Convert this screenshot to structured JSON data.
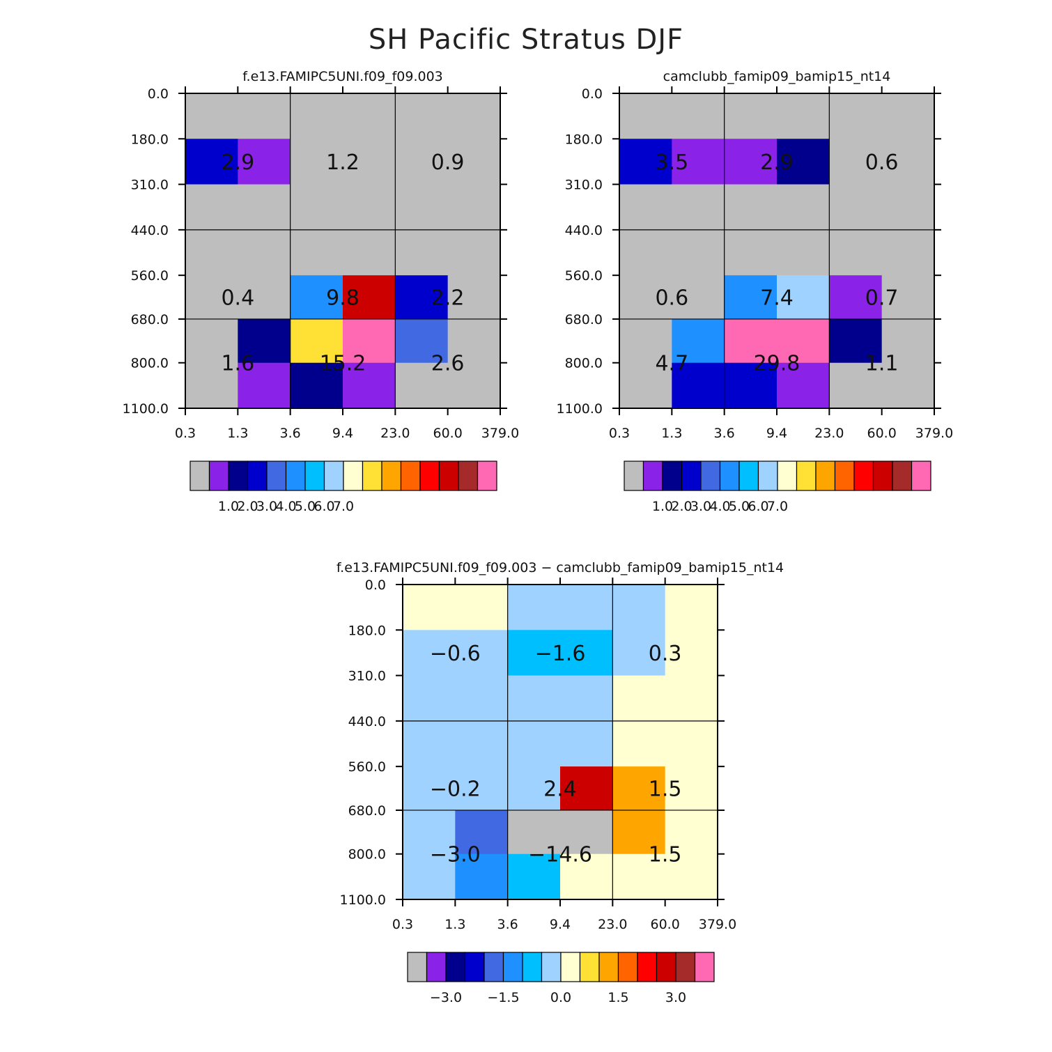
{
  "figure_title": "SH Pacific Stratus DJF",
  "palette": [
    "#bebebe",
    "#8a22e8",
    "#00008c",
    "#0000cd",
    "#4169e1",
    "#1e90ff",
    "#00bfff",
    "#a0d2ff",
    "#ffffd1",
    "#ffe135",
    "#ffa500",
    "#ff6400",
    "#ff0000",
    "#cd0000",
    "#a52a2a",
    "#ff69b4"
  ],
  "chart_data": [
    {
      "type": "heatmap",
      "title": "f.e13.FAMIPC5UNI.f09_f09.003",
      "xticks": [
        "0.3",
        "1.3",
        "3.6",
        "9.4",
        "23.0",
        "60.0",
        "379.0"
      ],
      "yticks": [
        "0.0",
        "180.0",
        "310.0",
        "440.0",
        "560.0",
        "680.0",
        "800.0",
        "1100.0"
      ],
      "cells": [
        [
          0,
          0,
          0,
          0,
          0,
          0
        ],
        [
          3,
          1,
          0,
          0,
          0,
          0
        ],
        [
          0,
          0,
          0,
          0,
          0,
          0
        ],
        [
          0,
          0,
          0,
          0,
          0,
          0
        ],
        [
          0,
          0,
          5,
          13,
          3,
          0
        ],
        [
          0,
          2,
          9,
          15,
          4,
          0
        ],
        [
          0,
          1,
          2,
          1,
          0,
          0
        ]
      ],
      "annotations": [
        [
          "2.9",
          "1.2",
          "0.9"
        ],
        [
          "0.4",
          "9.8",
          "2.2"
        ],
        [
          "1.6",
          "15.2",
          "2.6"
        ]
      ],
      "colorbar_labels": [
        "1.0",
        "2.0",
        "3.0",
        "4.0",
        "5.0",
        "6.0",
        "7.0"
      ]
    },
    {
      "type": "heatmap",
      "title": "camclubb_famip09_bamip15_nt14",
      "xticks": [
        "0.3",
        "1.3",
        "3.6",
        "9.4",
        "23.0",
        "60.0",
        "379.0"
      ],
      "yticks": [
        "0.0",
        "180.0",
        "310.0",
        "440.0",
        "560.0",
        "680.0",
        "800.0",
        "1100.0"
      ],
      "cells": [
        [
          0,
          0,
          0,
          0,
          0,
          0
        ],
        [
          3,
          1,
          1,
          2,
          0,
          0
        ],
        [
          0,
          0,
          0,
          0,
          0,
          0
        ],
        [
          0,
          0,
          0,
          0,
          0,
          0
        ],
        [
          0,
          0,
          5,
          7,
          1,
          0
        ],
        [
          0,
          5,
          15,
          15,
          2,
          0
        ],
        [
          0,
          3,
          3,
          1,
          0,
          0
        ]
      ],
      "annotations": [
        [
          "3.5",
          "2.9",
          "0.6"
        ],
        [
          "0.6",
          "7.4",
          "0.7"
        ],
        [
          "4.7",
          "29.8",
          "1.1"
        ]
      ],
      "colorbar_labels": [
        "1.0",
        "2.0",
        "3.0",
        "4.0",
        "5.0",
        "6.0",
        "7.0"
      ]
    },
    {
      "type": "heatmap",
      "title": "f.e13.FAMIPC5UNI.f09_f09.003 − camclubb_famip09_bamip15_nt14",
      "xticks": [
        "0.3",
        "1.3",
        "3.6",
        "9.4",
        "23.0",
        "60.0",
        "379.0"
      ],
      "yticks": [
        "0.0",
        "180.0",
        "310.0",
        "440.0",
        "560.0",
        "680.0",
        "800.0",
        "1100.0"
      ],
      "cells": [
        [
          8,
          8,
          7,
          7,
          7,
          8
        ],
        [
          7,
          7,
          6,
          6,
          7,
          8
        ],
        [
          7,
          7,
          7,
          7,
          8,
          8
        ],
        [
          7,
          7,
          7,
          7,
          8,
          8
        ],
        [
          7,
          7,
          7,
          13,
          10,
          8
        ],
        [
          7,
          4,
          0,
          0,
          10,
          8
        ],
        [
          7,
          5,
          6,
          8,
          8,
          8
        ]
      ],
      "annotations": [
        [
          "−0.6",
          "−1.6",
          "0.3"
        ],
        [
          "−0.2",
          "2.4",
          "1.5"
        ],
        [
          "−3.0",
          "−14.6",
          "1.5"
        ]
      ],
      "colorbar_labels": [
        "−3.0",
        "−1.5",
        "0.0",
        "1.5",
        "3.0"
      ]
    }
  ]
}
